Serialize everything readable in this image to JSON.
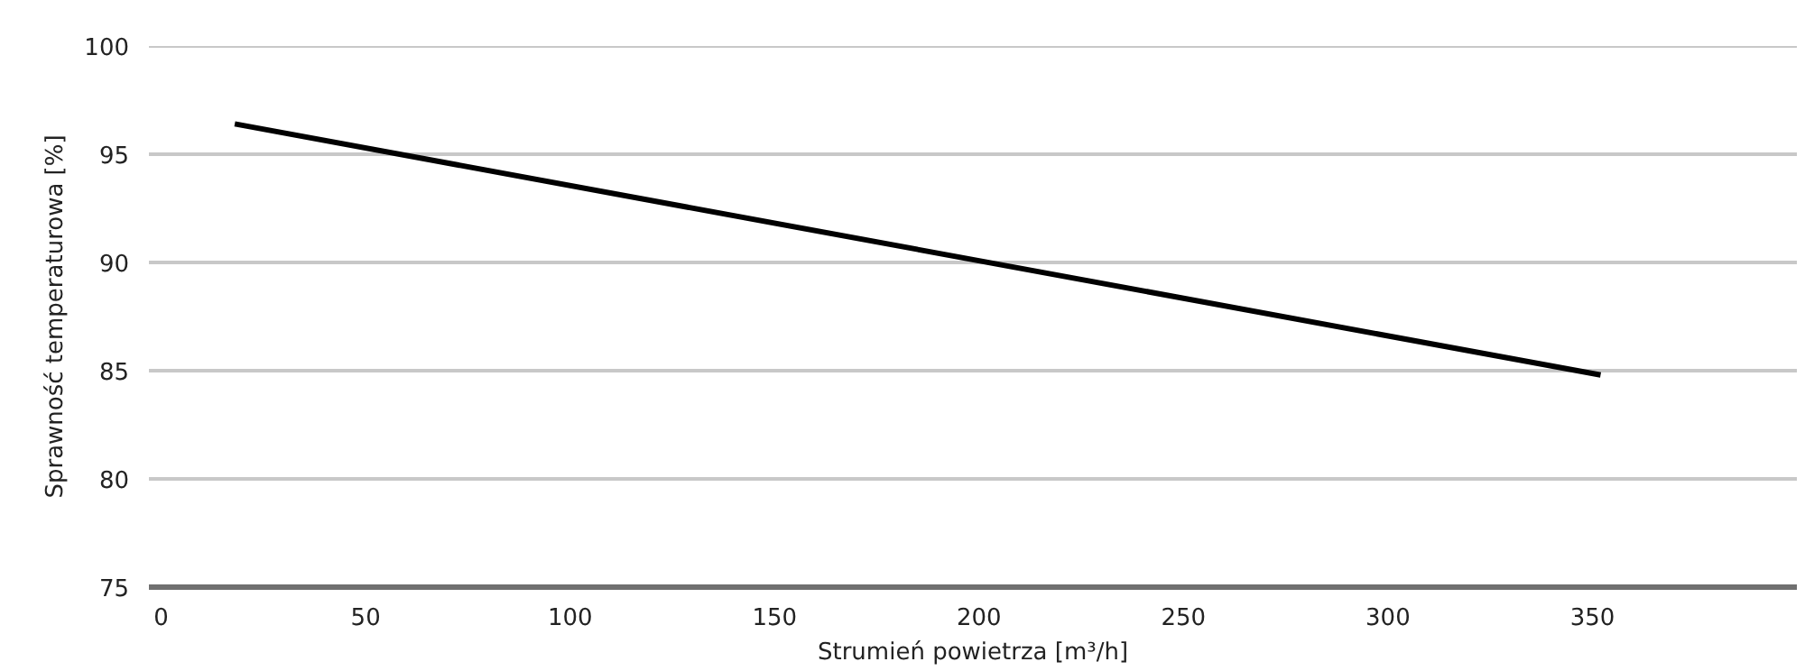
{
  "chart_data": {
    "type": "line",
    "xlabel": "Strumień powietrza [m³/h]",
    "ylabel": "Sprawność temperaturowa [%]",
    "x": [
      18,
      352
    ],
    "series": [
      {
        "color": "#000000",
        "values": [
          96.4,
          84.8
        ]
      }
    ],
    "xlim": [
      -3,
      400
    ],
    "xticks": [
      0,
      50,
      100,
      150,
      200,
      250,
      300,
      350
    ],
    "ylim": [
      75,
      100
    ],
    "yticks": [
      75,
      80,
      85,
      90,
      95,
      100
    ],
    "grid": "y",
    "marker": "none",
    "line_style": "solid"
  }
}
